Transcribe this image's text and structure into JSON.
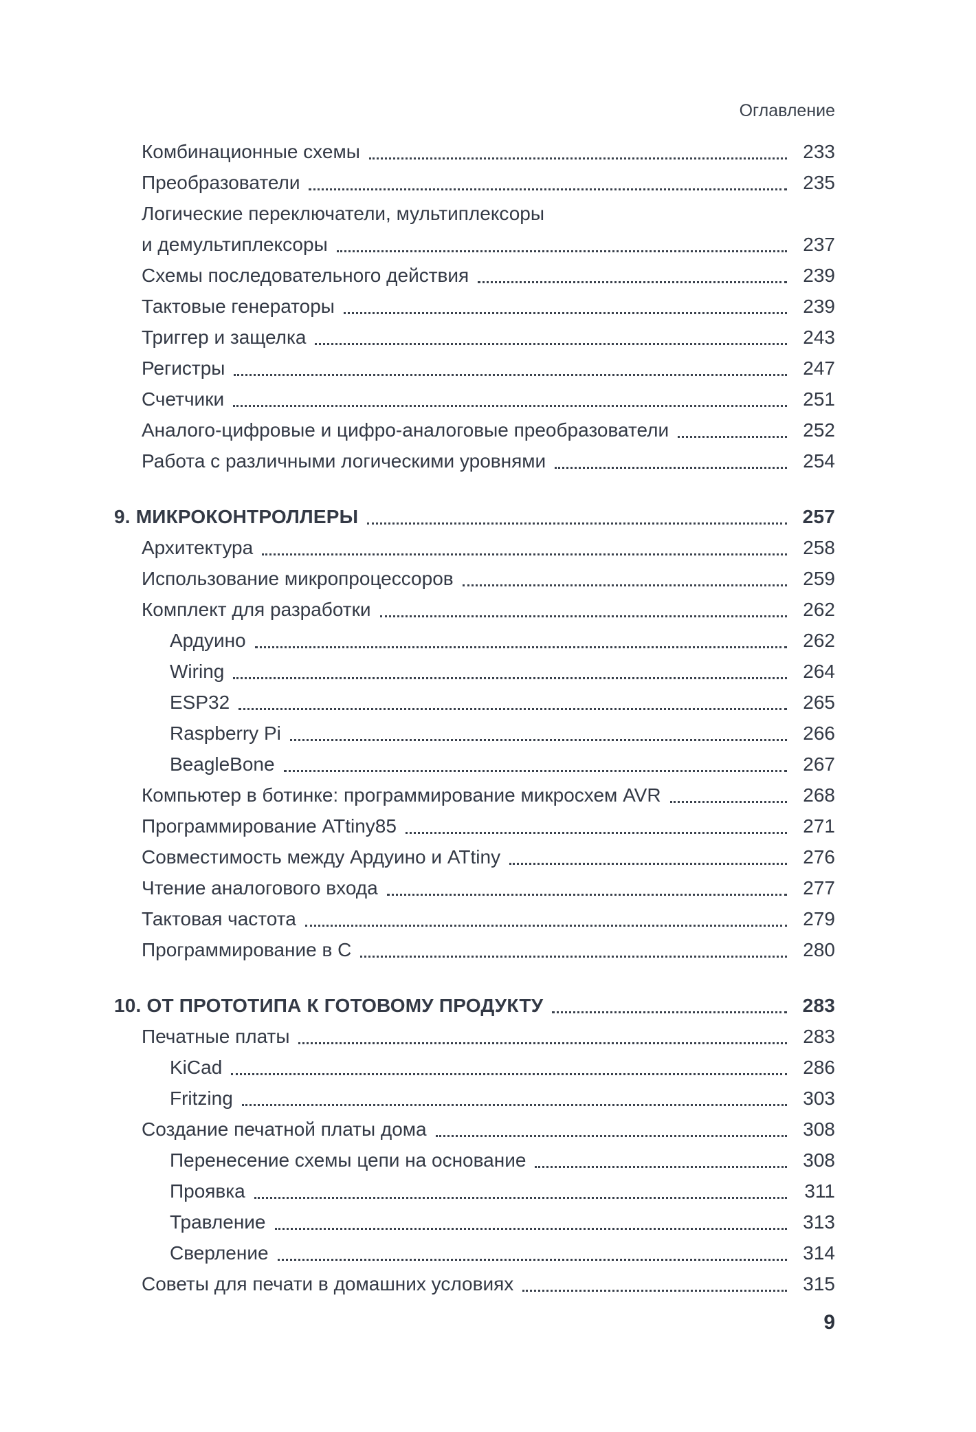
{
  "page": {
    "running_header": "Оглавление",
    "footer_page_number": "9",
    "background_color": "#ffffff",
    "text_color": "#333945"
  },
  "toc": {
    "entries": [
      {
        "label": "Комбинационные схемы",
        "page": "233",
        "level": 1
      },
      {
        "label": "Преобразователи",
        "page": "235",
        "level": 1
      },
      {
        "label": "Логические переключатели, мультиплексоры",
        "page": "",
        "level": 1
      },
      {
        "label": "и демультиплексоры",
        "page": "237",
        "level": 1
      },
      {
        "label": "Схемы последовательного действия",
        "page": "239",
        "level": 1
      },
      {
        "label": "Тактовые генераторы",
        "page": "239",
        "level": 1
      },
      {
        "label": "Триггер и защелка",
        "page": "243",
        "level": 1
      },
      {
        "label": "Регистры",
        "page": "247",
        "level": 1
      },
      {
        "label": "Счетчики",
        "page": "251",
        "level": 1
      },
      {
        "label": "Аналого-цифровые и цифро-аналоговые преобразователи",
        "page": "252",
        "level": 1
      },
      {
        "label": "Работа с различными логическими уровнями",
        "page": "254",
        "level": 1
      },
      {
        "label": "9. МИКРОКОНТРОЛЛЕРЫ",
        "page": "257",
        "level": 0,
        "chapter": true,
        "gap_before": true
      },
      {
        "label": "Архитектура",
        "page": "258",
        "level": 1
      },
      {
        "label": "Использование микропроцессоров",
        "page": "259",
        "level": 1
      },
      {
        "label": "Комплект для разработки",
        "page": "262",
        "level": 1
      },
      {
        "label": "Ардуино",
        "page": "262",
        "level": 2
      },
      {
        "label": "Wiring",
        "page": "264",
        "level": 2
      },
      {
        "label": "ESP32",
        "page": "265",
        "level": 2
      },
      {
        "label": "Raspberry Pi",
        "page": "266",
        "level": 2
      },
      {
        "label": "BeagleBone",
        "page": "267",
        "level": 2
      },
      {
        "label": "Компьютер в ботинке: программирование микросхем AVR",
        "page": "268",
        "level": 1
      },
      {
        "label": "Программирование ATtiny85",
        "page": "271",
        "level": 1
      },
      {
        "label": "Совместимость между Ардуино и ATtiny",
        "page": "276",
        "level": 1
      },
      {
        "label": "Чтение аналогового входа",
        "page": "277",
        "level": 1
      },
      {
        "label": "Тактовая частота",
        "page": "279",
        "level": 1
      },
      {
        "label": "Программирование в C",
        "page": "280",
        "level": 1
      },
      {
        "label": "10. ОТ ПРОТОТИПА К ГОТОВОМУ ПРОДУКТУ",
        "page": "283",
        "level": 0,
        "chapter": true,
        "gap_before": true
      },
      {
        "label": "Печатные платы",
        "page": "283",
        "level": 1
      },
      {
        "label": "KiCad",
        "page": "286",
        "level": 2
      },
      {
        "label": "Fritzing",
        "page": "303",
        "level": 2
      },
      {
        "label": "Создание печатной платы дома",
        "page": "308",
        "level": 1
      },
      {
        "label": "Перенесение схемы цепи на основание",
        "page": "308",
        "level": 2
      },
      {
        "label": "Проявка",
        "page": "311",
        "level": 2
      },
      {
        "label": "Травление",
        "page": "313",
        "level": 2
      },
      {
        "label": "Сверление",
        "page": "314",
        "level": 2
      },
      {
        "label": "Советы для печати в домашних условиях",
        "page": "315",
        "level": 1
      }
    ]
  }
}
